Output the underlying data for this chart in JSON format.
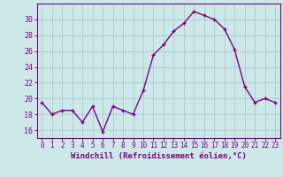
{
  "x": [
    0,
    1,
    2,
    3,
    4,
    5,
    6,
    7,
    8,
    9,
    10,
    11,
    12,
    13,
    14,
    15,
    16,
    17,
    18,
    19,
    20,
    21,
    22,
    23
  ],
  "y": [
    19.5,
    18.0,
    18.5,
    18.5,
    17.0,
    19.0,
    15.8,
    19.0,
    18.5,
    18.0,
    21.0,
    25.5,
    26.8,
    28.5,
    29.5,
    31.0,
    30.5,
    30.0,
    28.8,
    26.2,
    21.5,
    19.5,
    20.0,
    19.5
  ],
  "line_color": "#800080",
  "marker": "+",
  "marker_color": "#800080",
  "bg_color": "#cce8e8",
  "grid_color": "#aacccc",
  "xlabel": "Windchill (Refroidissement éolien,°C)",
  "xlabel_color": "#800080",
  "tick_color": "#800080",
  "ylim": [
    15,
    32
  ],
  "yticks": [
    16,
    18,
    20,
    22,
    24,
    26,
    28,
    30
  ],
  "xticks": [
    0,
    1,
    2,
    3,
    4,
    5,
    6,
    7,
    8,
    9,
    10,
    11,
    12,
    13,
    14,
    15,
    16,
    17,
    18,
    19,
    20,
    21,
    22,
    23
  ],
  "linewidth": 1.0,
  "markersize": 3
}
